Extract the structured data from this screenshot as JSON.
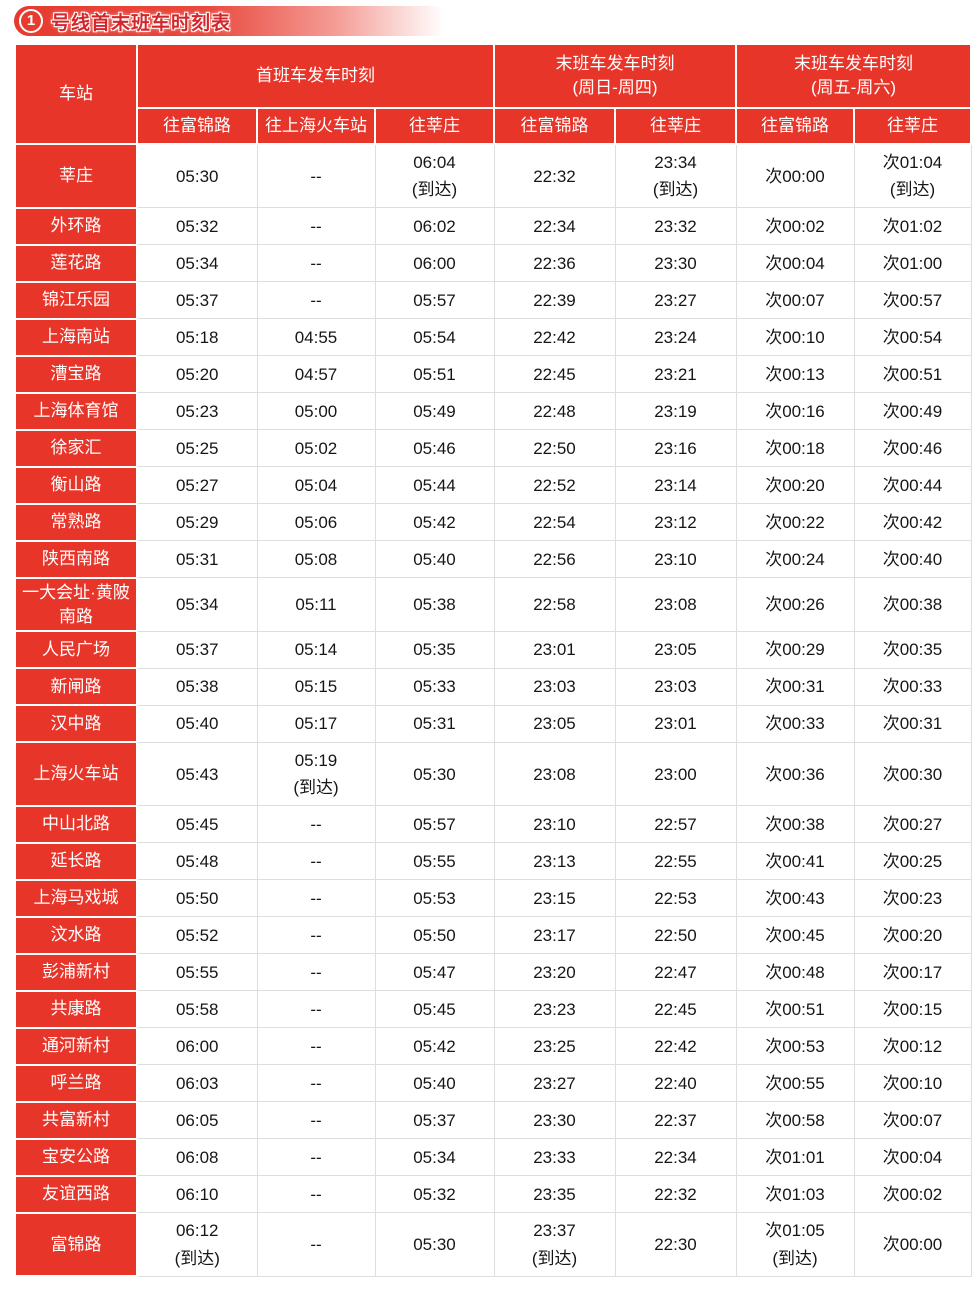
{
  "title": {
    "badge": "1",
    "text": "号线首末班车时刻表"
  },
  "colors": {
    "red": "#e8352a",
    "title_red": "#d3262a",
    "grid": "#dedede"
  },
  "table": {
    "station_header": "车站",
    "groups": [
      {
        "label": "首班车发车时刻",
        "cols": [
          "往富锦路",
          "往上海火车站",
          "往莘庄"
        ]
      },
      {
        "label": "末班车发车时刻\n(周日-周四)",
        "cols": [
          "往富锦路",
          "往莘庄"
        ]
      },
      {
        "label": "末班车发车时刻\n(周五-周六)",
        "cols": [
          "往富锦路",
          "往莘庄"
        ]
      }
    ],
    "rows": [
      {
        "station": "莘庄",
        "times": [
          "05:30",
          "--",
          "06:04\n(到达)",
          "22:32",
          "23:34\n(到达)",
          "次00:00",
          "次01:04\n(到达)"
        ]
      },
      {
        "station": "外环路",
        "times": [
          "05:32",
          "--",
          "06:02",
          "22:34",
          "23:32",
          "次00:02",
          "次01:02"
        ]
      },
      {
        "station": "莲花路",
        "times": [
          "05:34",
          "--",
          "06:00",
          "22:36",
          "23:30",
          "次00:04",
          "次01:00"
        ]
      },
      {
        "station": "锦江乐园",
        "times": [
          "05:37",
          "--",
          "05:57",
          "22:39",
          "23:27",
          "次00:07",
          "次00:57"
        ]
      },
      {
        "station": "上海南站",
        "times": [
          "05:18",
          "04:55",
          "05:54",
          "22:42",
          "23:24",
          "次00:10",
          "次00:54"
        ]
      },
      {
        "station": "漕宝路",
        "times": [
          "05:20",
          "04:57",
          "05:51",
          "22:45",
          "23:21",
          "次00:13",
          "次00:51"
        ]
      },
      {
        "station": "上海体育馆",
        "times": [
          "05:23",
          "05:00",
          "05:49",
          "22:48",
          "23:19",
          "次00:16",
          "次00:49"
        ]
      },
      {
        "station": "徐家汇",
        "times": [
          "05:25",
          "05:02",
          "05:46",
          "22:50",
          "23:16",
          "次00:18",
          "次00:46"
        ]
      },
      {
        "station": "衡山路",
        "times": [
          "05:27",
          "05:04",
          "05:44",
          "22:52",
          "23:14",
          "次00:20",
          "次00:44"
        ]
      },
      {
        "station": "常熟路",
        "times": [
          "05:29",
          "05:06",
          "05:42",
          "22:54",
          "23:12",
          "次00:22",
          "次00:42"
        ]
      },
      {
        "station": "陕西南路",
        "times": [
          "05:31",
          "05:08",
          "05:40",
          "22:56",
          "23:10",
          "次00:24",
          "次00:40"
        ]
      },
      {
        "station": "一大会址·黄陂南路",
        "times": [
          "05:34",
          "05:11",
          "05:38",
          "22:58",
          "23:08",
          "次00:26",
          "次00:38"
        ]
      },
      {
        "station": "人民广场",
        "times": [
          "05:37",
          "05:14",
          "05:35",
          "23:01",
          "23:05",
          "次00:29",
          "次00:35"
        ]
      },
      {
        "station": "新闸路",
        "times": [
          "05:38",
          "05:15",
          "05:33",
          "23:03",
          "23:03",
          "次00:31",
          "次00:33"
        ]
      },
      {
        "station": "汉中路",
        "times": [
          "05:40",
          "05:17",
          "05:31",
          "23:05",
          "23:01",
          "次00:33",
          "次00:31"
        ]
      },
      {
        "station": "上海火车站",
        "times": [
          "05:43",
          "05:19\n(到达)",
          "05:30",
          "23:08",
          "23:00",
          "次00:36",
          "次00:30"
        ]
      },
      {
        "station": "中山北路",
        "times": [
          "05:45",
          "--",
          "05:57",
          "23:10",
          "22:57",
          "次00:38",
          "次00:27"
        ]
      },
      {
        "station": "延长路",
        "times": [
          "05:48",
          "--",
          "05:55",
          "23:13",
          "22:55",
          "次00:41",
          "次00:25"
        ]
      },
      {
        "station": "上海马戏城",
        "times": [
          "05:50",
          "--",
          "05:53",
          "23:15",
          "22:53",
          "次00:43",
          "次00:23"
        ]
      },
      {
        "station": "汶水路",
        "times": [
          "05:52",
          "--",
          "05:50",
          "23:17",
          "22:50",
          "次00:45",
          "次00:20"
        ]
      },
      {
        "station": "彭浦新村",
        "times": [
          "05:55",
          "--",
          "05:47",
          "23:20",
          "22:47",
          "次00:48",
          "次00:17"
        ]
      },
      {
        "station": "共康路",
        "times": [
          "05:58",
          "--",
          "05:45",
          "23:23",
          "22:45",
          "次00:51",
          "次00:15"
        ]
      },
      {
        "station": "通河新村",
        "times": [
          "06:00",
          "--",
          "05:42",
          "23:25",
          "22:42",
          "次00:53",
          "次00:12"
        ]
      },
      {
        "station": "呼兰路",
        "times": [
          "06:03",
          "--",
          "05:40",
          "23:27",
          "22:40",
          "次00:55",
          "次00:10"
        ]
      },
      {
        "station": "共富新村",
        "times": [
          "06:05",
          "--",
          "05:37",
          "23:30",
          "22:37",
          "次00:58",
          "次00:07"
        ]
      },
      {
        "station": "宝安公路",
        "times": [
          "06:08",
          "--",
          "05:34",
          "23:33",
          "22:34",
          "次01:01",
          "次00:04"
        ]
      },
      {
        "station": "友谊西路",
        "times": [
          "06:10",
          "--",
          "05:32",
          "23:35",
          "22:32",
          "次01:03",
          "次00:02"
        ]
      },
      {
        "station": "富锦路",
        "times": [
          "06:12\n(到达)",
          "--",
          "05:30",
          "23:37\n(到达)",
          "22:30",
          "次01:05\n(到达)",
          "次00:00"
        ]
      }
    ]
  }
}
